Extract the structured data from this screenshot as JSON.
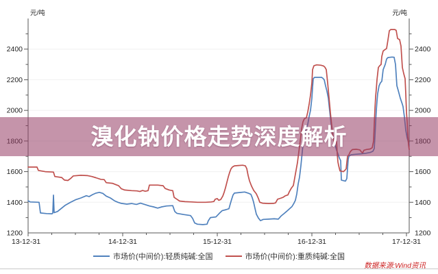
{
  "banner": {
    "title": "溴化钠价格走势深度解析"
  },
  "watermark": {
    "source_note": "数据来源:Wind资讯"
  },
  "colors": {
    "banner_bg": "rgba(150,60,100,0.55)",
    "banner_text": "#ffffff",
    "watermark_text": "#cc2222",
    "axis": "#555555",
    "tick_text": "#222222",
    "grid": "#f0f0f0",
    "separator": "#c8c8c8",
    "series_light": "#4F81BD",
    "series_dense": "#C0504D"
  },
  "chart_data": {
    "type": "line",
    "title": "",
    "xlabel": "",
    "ylabel": "元/吨",
    "unit_label_left": "元/吨",
    "unit_label_right": "元/吨",
    "grid": "horizontal-only",
    "legend_position": "bottom-center",
    "ylim": [
      1200,
      2600
    ],
    "y_major_ticks": [
      1200,
      1400,
      1600,
      1800,
      2000,
      2200,
      2400
    ],
    "y_minor_step": 100,
    "x_tick_labels": [
      "13-12-31",
      "14-12-31",
      "15-12-31",
      "16-12-31",
      "17-12-31"
    ],
    "x_minor_ticks_per_year": 4,
    "legend": [
      {
        "label": "市场价(中间价):轻质纯碱:全国",
        "color": "#4F81BD"
      },
      {
        "label": "市场价(中间价):重质纯碱:全国",
        "color": "#C0504D"
      }
    ],
    "series": [
      {
        "name": "市场价(中间价):轻质纯碱:全国",
        "color": "#4F81BD",
        "points": [
          [
            41,
            1410
          ],
          [
            44,
            1402
          ],
          [
            57,
            1400
          ],
          [
            59,
            1330
          ],
          [
            68,
            1326
          ],
          [
            76,
            1325
          ],
          [
            77,
            1330
          ],
          [
            78,
            1447
          ],
          [
            79,
            1332
          ],
          [
            84,
            1340
          ],
          [
            90,
            1362
          ],
          [
            95,
            1380
          ],
          [
            103,
            1400
          ],
          [
            110,
            1416
          ],
          [
            118,
            1428
          ],
          [
            126,
            1443
          ],
          [
            130,
            1437
          ],
          [
            135,
            1450
          ],
          [
            140,
            1460
          ],
          [
            145,
            1465
          ],
          [
            150,
            1458
          ],
          [
            155,
            1440
          ],
          [
            161,
            1428
          ],
          [
            167,
            1410
          ],
          [
            172,
            1400
          ],
          [
            177,
            1393
          ],
          [
            185,
            1388
          ],
          [
            192,
            1392
          ],
          [
            199,
            1386
          ],
          [
            205,
            1394
          ],
          [
            211,
            1386
          ],
          [
            218,
            1376
          ],
          [
            224,
            1370
          ],
          [
            230,
            1362
          ],
          [
            236,
            1370
          ],
          [
            243,
            1376
          ],
          [
            252,
            1378
          ],
          [
            255,
            1340
          ],
          [
            258,
            1328
          ],
          [
            268,
            1320
          ],
          [
            278,
            1313
          ],
          [
            281,
            1295
          ],
          [
            284,
            1265
          ],
          [
            288,
            1257
          ],
          [
            296,
            1254
          ],
          [
            302,
            1257
          ],
          [
            304,
            1280
          ],
          [
            307,
            1300
          ],
          [
            315,
            1304
          ],
          [
            320,
            1328
          ],
          [
            324,
            1345
          ],
          [
            330,
            1352
          ],
          [
            334,
            1358
          ],
          [
            336,
            1390
          ],
          [
            338,
            1420
          ],
          [
            340,
            1448
          ],
          [
            342,
            1460
          ],
          [
            350,
            1464
          ],
          [
            357,
            1467
          ],
          [
            362,
            1460
          ],
          [
            366,
            1452
          ],
          [
            368,
            1430
          ],
          [
            370,
            1400
          ],
          [
            372,
            1360
          ],
          [
            374,
            1322
          ],
          [
            377,
            1297
          ],
          [
            380,
            1280
          ],
          [
            384,
            1288
          ],
          [
            392,
            1290
          ],
          [
            400,
            1292
          ],
          [
            406,
            1290
          ],
          [
            410,
            1310
          ],
          [
            414,
            1325
          ],
          [
            418,
            1340
          ],
          [
            422,
            1356
          ],
          [
            426,
            1372
          ],
          [
            429,
            1395
          ],
          [
            431,
            1414
          ],
          [
            433,
            1455
          ],
          [
            435,
            1520
          ],
          [
            437,
            1565
          ],
          [
            439,
            1640
          ],
          [
            441,
            1730
          ],
          [
            443,
            1820
          ],
          [
            446,
            1870
          ],
          [
            449,
            1910
          ],
          [
            451,
            1960
          ],
          [
            453,
            2000
          ],
          [
            455,
            2080
          ],
          [
            456,
            2150
          ],
          [
            457,
            2207
          ],
          [
            459,
            2216
          ],
          [
            469,
            2216
          ],
          [
            471,
            2210
          ],
          [
            473,
            2200
          ],
          [
            475,
            2160
          ],
          [
            477,
            2125
          ],
          [
            479,
            2080
          ],
          [
            481,
            1995
          ],
          [
            483,
            1912
          ],
          [
            485,
            1855
          ],
          [
            487,
            1808
          ],
          [
            489,
            1770
          ],
          [
            491,
            1740
          ],
          [
            493,
            1717
          ],
          [
            495,
            1690
          ],
          [
            497,
            1672
          ],
          [
            498,
            1545
          ],
          [
            504,
            1538
          ],
          [
            506,
            1555
          ],
          [
            507,
            1620
          ],
          [
            508,
            1680
          ],
          [
            509,
            1700
          ],
          [
            512,
            1710
          ],
          [
            518,
            1713
          ],
          [
            526,
            1716
          ],
          [
            534,
            1720
          ],
          [
            540,
            1725
          ],
          [
            544,
            1733
          ],
          [
            546,
            1750
          ],
          [
            547,
            1830
          ],
          [
            548,
            1920
          ],
          [
            549,
            2000
          ],
          [
            550,
            2060
          ],
          [
            551,
            2110
          ],
          [
            553,
            2160
          ],
          [
            555,
            2180
          ],
          [
            557,
            2190
          ],
          [
            559,
            2266
          ],
          [
            562,
            2300
          ],
          [
            564,
            2335
          ],
          [
            566,
            2345
          ],
          [
            572,
            2348
          ],
          [
            575,
            2347
          ],
          [
            577,
            2300
          ],
          [
            578,
            2230
          ],
          [
            579,
            2161
          ],
          [
            581,
            2130
          ],
          [
            584,
            2080
          ],
          [
            587,
            2040
          ],
          [
            588,
            2025
          ],
          [
            590,
            1957
          ],
          [
            592,
            1870
          ],
          [
            594,
            1820
          ],
          [
            596,
            1790
          ],
          [
            597,
            1776
          ]
        ]
      },
      {
        "name": "市场价(中间价):重质纯碱:全国",
        "color": "#C0504D",
        "points": [
          [
            41,
            1630
          ],
          [
            54,
            1630
          ],
          [
            56,
            1608
          ],
          [
            66,
            1600
          ],
          [
            78,
            1597
          ],
          [
            80,
            1568
          ],
          [
            90,
            1562
          ],
          [
            94,
            1545
          ],
          [
            99,
            1542
          ],
          [
            103,
            1555
          ],
          [
            107,
            1572
          ],
          [
            118,
            1576
          ],
          [
            128,
            1574
          ],
          [
            134,
            1568
          ],
          [
            140,
            1560
          ],
          [
            147,
            1550
          ],
          [
            152,
            1548
          ],
          [
            155,
            1528
          ],
          [
            164,
            1524
          ],
          [
            169,
            1515
          ],
          [
            173,
            1508
          ],
          [
            177,
            1488
          ],
          [
            182,
            1480
          ],
          [
            192,
            1476
          ],
          [
            200,
            1474
          ],
          [
            204,
            1470
          ],
          [
            208,
            1477
          ],
          [
            212,
            1472
          ],
          [
            216,
            1476
          ],
          [
            218,
            1512
          ],
          [
            230,
            1512
          ],
          [
            238,
            1508
          ],
          [
            241,
            1490
          ],
          [
            247,
            1480
          ],
          [
            252,
            1476
          ],
          [
            254,
            1432
          ],
          [
            258,
            1420
          ],
          [
            262,
            1408
          ],
          [
            270,
            1404
          ],
          [
            280,
            1402
          ],
          [
            288,
            1400
          ],
          [
            300,
            1400
          ],
          [
            308,
            1402
          ],
          [
            312,
            1405
          ],
          [
            314,
            1420
          ],
          [
            317,
            1424
          ],
          [
            319,
            1413
          ],
          [
            322,
            1418
          ],
          [
            325,
            1440
          ],
          [
            327,
            1465
          ],
          [
            329,
            1495
          ],
          [
            331,
            1530
          ],
          [
            333,
            1565
          ],
          [
            335,
            1595
          ],
          [
            337,
            1618
          ],
          [
            339,
            1630
          ],
          [
            342,
            1638
          ],
          [
            348,
            1640
          ],
          [
            354,
            1642
          ],
          [
            358,
            1638
          ],
          [
            360,
            1620
          ],
          [
            362,
            1575
          ],
          [
            364,
            1540
          ],
          [
            367,
            1505
          ],
          [
            370,
            1478
          ],
          [
            374,
            1455
          ],
          [
            377,
            1425
          ],
          [
            379,
            1400
          ],
          [
            383,
            1394
          ],
          [
            392,
            1392
          ],
          [
            399,
            1393
          ],
          [
            402,
            1396
          ],
          [
            405,
            1420
          ],
          [
            409,
            1426
          ],
          [
            413,
            1432
          ],
          [
            416,
            1442
          ],
          [
            420,
            1448
          ],
          [
            422,
            1468
          ],
          [
            425,
            1492
          ],
          [
            428,
            1510
          ],
          [
            430,
            1560
          ],
          [
            432,
            1610
          ],
          [
            434,
            1660
          ],
          [
            436,
            1731
          ],
          [
            438,
            1800
          ],
          [
            440,
            1880
          ],
          [
            442,
            1925
          ],
          [
            444,
            1945
          ],
          [
            447,
            1952
          ],
          [
            449,
            1990
          ],
          [
            451,
            2040
          ],
          [
            453,
            2100
          ],
          [
            455,
            2180
          ],
          [
            456,
            2266
          ],
          [
            458,
            2292
          ],
          [
            462,
            2297
          ],
          [
            468,
            2295
          ],
          [
            472,
            2290
          ],
          [
            474,
            2282
          ],
          [
            476,
            2266
          ],
          [
            478,
            2180
          ],
          [
            480,
            2084
          ],
          [
            482,
            1985
          ],
          [
            484,
            1900
          ],
          [
            486,
            1821
          ],
          [
            487,
            1800
          ],
          [
            491,
            1797
          ],
          [
            492,
            1717
          ],
          [
            493,
            1663
          ],
          [
            494,
            1640
          ],
          [
            496,
            1605
          ],
          [
            501,
            1600
          ],
          [
            503,
            1608
          ],
          [
            505,
            1618
          ],
          [
            506,
            1660
          ],
          [
            507,
            1700
          ],
          [
            509,
            1710
          ],
          [
            511,
            1730
          ],
          [
            514,
            1744
          ],
          [
            520,
            1746
          ],
          [
            525,
            1742
          ],
          [
            527,
            1730
          ],
          [
            529,
            1722
          ],
          [
            531,
            1740
          ],
          [
            535,
            1745
          ],
          [
            540,
            1748
          ],
          [
            543,
            1756
          ],
          [
            545,
            1800
          ],
          [
            546,
            1912
          ],
          [
            547,
            2010
          ],
          [
            548,
            2090
          ],
          [
            549,
            2140
          ],
          [
            550,
            2200
          ],
          [
            552,
            2280
          ],
          [
            554,
            2292
          ],
          [
            556,
            2300
          ],
          [
            557,
            2352
          ],
          [
            559,
            2388
          ],
          [
            562,
            2398
          ],
          [
            564,
            2404
          ],
          [
            566,
            2460
          ],
          [
            568,
            2520
          ],
          [
            570,
            2528
          ],
          [
            576,
            2528
          ],
          [
            578,
            2522
          ],
          [
            580,
            2470
          ],
          [
            583,
            2462
          ],
          [
            585,
            2420
          ],
          [
            586,
            2350
          ],
          [
            587,
            2280
          ],
          [
            589,
            2240
          ],
          [
            591,
            2207
          ],
          [
            592,
            2107
          ],
          [
            593,
            1990
          ],
          [
            594,
            1926
          ],
          [
            595,
            1830
          ],
          [
            596,
            1776
          ],
          [
            597,
            1744
          ]
        ]
      }
    ]
  }
}
